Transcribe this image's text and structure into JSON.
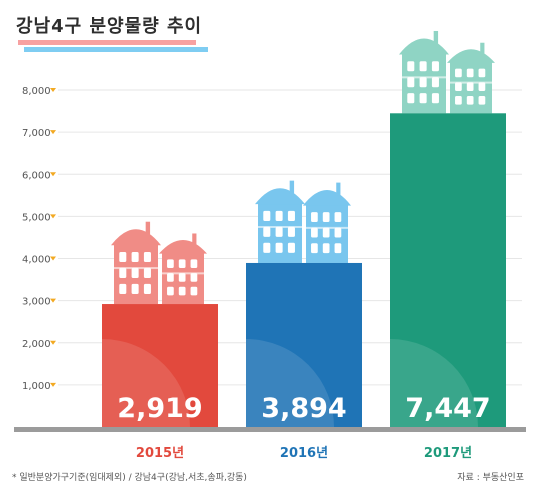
{
  "title": "강남4구 분양물량 추이",
  "footnote": "* 일반분양가구기준(임대제외) / 강남4구(강남,서초,송파,강동)",
  "source": "자료 : 부동산인포",
  "colors": {
    "accent_pink": "#f7a1a1",
    "accent_blue": "#7fcdf2",
    "tick_marker": "#f2a922",
    "bar_2015": "#e2493d",
    "bar_2016": "#1f74b6",
    "bar_2017": "#1e9a7b",
    "house_2015": "#f08c86",
    "house_2016": "#79c6ee",
    "house_2017": "#8fd4c4"
  },
  "chart_data": {
    "type": "bar",
    "categories": [
      "2015년",
      "2016년",
      "2017년"
    ],
    "values": [
      2919,
      3894,
      7447
    ],
    "value_labels": [
      "2,919",
      "3,894",
      "7,447"
    ],
    "yticks": [
      "1,000",
      "2,000",
      "3,000",
      "4,000",
      "5,000",
      "6,000",
      "7,000",
      "8,000"
    ],
    "ylim": [
      0,
      8000
    ],
    "category_colors": [
      "#e2493d",
      "#1f74b6",
      "#1e9a7b"
    ],
    "grid": true,
    "legend": "none"
  }
}
